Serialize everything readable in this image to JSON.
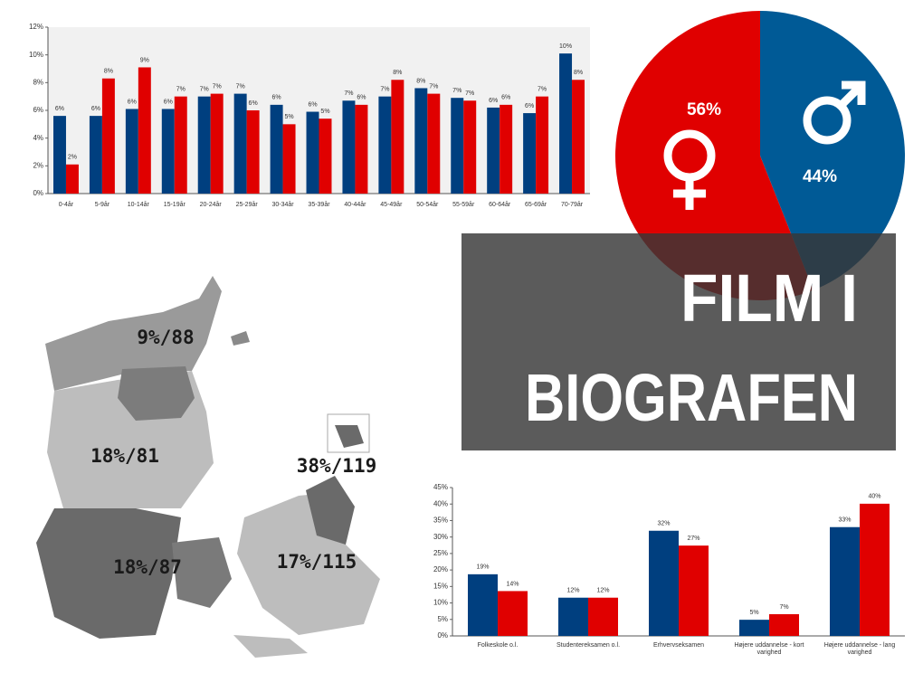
{
  "slide_title": [
    "FILM I",
    "BIOGRAFEN"
  ],
  "map": {
    "labels": [
      "9%/88",
      "18%/81",
      "38%/119",
      "18%/87",
      "17%/115"
    ]
  },
  "chart_data": [
    {
      "type": "bar",
      "categories": [
        "0-4år",
        "5-9år",
        "10-14år",
        "15-19år",
        "20-24år",
        "25-29år",
        "30-34år",
        "35-39år",
        "40-44år",
        "45-49år",
        "50-54år",
        "55-59år",
        "60-64år",
        "65-69år",
        "70-79år"
      ],
      "series": [
        {
          "color": "#003f7f",
          "values": [
            5.6,
            5.6,
            6.1,
            6.1,
            7.0,
            7.2,
            6.4,
            5.9,
            6.7,
            7.0,
            7.6,
            6.9,
            6.2,
            5.8,
            10.1
          ],
          "value_labels": [
            "6%",
            "6%",
            "6%",
            "6%",
            "7%",
            "7%",
            "6%",
            "6%",
            "7%",
            "7%",
            "8%",
            "7%",
            "6%",
            "6%",
            "10%"
          ]
        },
        {
          "color": "#e00000",
          "values": [
            2.1,
            8.3,
            9.1,
            7.0,
            7.2,
            6.0,
            5.0,
            5.4,
            6.4,
            8.2,
            7.2,
            6.7,
            6.4,
            7.0,
            8.2
          ],
          "value_labels": [
            "2%",
            "8%",
            "9%",
            "7%",
            "7%",
            "6%",
            "5%",
            "5%",
            "6%",
            "8%",
            "7%",
            "7%",
            "6%",
            "7%",
            "8%"
          ]
        }
      ],
      "ylim": [
        0,
        12
      ],
      "yticks": [
        {
          "value": 0,
          "label": "0%"
        },
        {
          "value": 2,
          "label": "2%"
        },
        {
          "value": 4,
          "label": "4%"
        },
        {
          "value": 6,
          "label": "6%"
        },
        {
          "value": 8,
          "label": "8%"
        },
        {
          "value": 10,
          "label": "10%"
        },
        {
          "value": 12,
          "label": "12%"
        }
      ],
      "grid": false
    },
    {
      "type": "pie",
      "values": [
        56,
        44
      ],
      "colors": [
        "#e00000",
        "#005a96"
      ],
      "value_labels": [
        "56%",
        "44%"
      ]
    },
    {
      "type": "bar",
      "categories": [
        "Folkeskole o.l.",
        "Studentereksamen o.l.",
        "Erhvervseksamen",
        "Højere uddannelse - kort varighed",
        "Højere uddannelse - lang varighed"
      ],
      "series": [
        {
          "color": "#003f7f",
          "values": [
            18.7,
            11.6,
            31.9,
            4.9,
            33.0
          ],
          "value_labels": [
            "19%",
            "12%",
            "32%",
            "5%",
            "33%"
          ]
        },
        {
          "color": "#e00000",
          "values": [
            13.6,
            11.6,
            27.4,
            6.6,
            40.1
          ],
          "value_labels": [
            "14%",
            "12%",
            "27%",
            "7%",
            "40%"
          ]
        }
      ],
      "ylim": [
        0,
        45
      ],
      "yticks": [
        {
          "value": 0,
          "label": "0%"
        },
        {
          "value": 5,
          "label": "5%"
        },
        {
          "value": 10,
          "label": "10%"
        },
        {
          "value": 15,
          "label": "15%"
        },
        {
          "value": 20,
          "label": "20%"
        },
        {
          "value": 25,
          "label": "25%"
        },
        {
          "value": 30,
          "label": "30%"
        },
        {
          "value": 35,
          "label": "35%"
        },
        {
          "value": 40,
          "label": "40%"
        },
        {
          "value": 45,
          "label": "45%"
        }
      ],
      "grid": false
    }
  ]
}
